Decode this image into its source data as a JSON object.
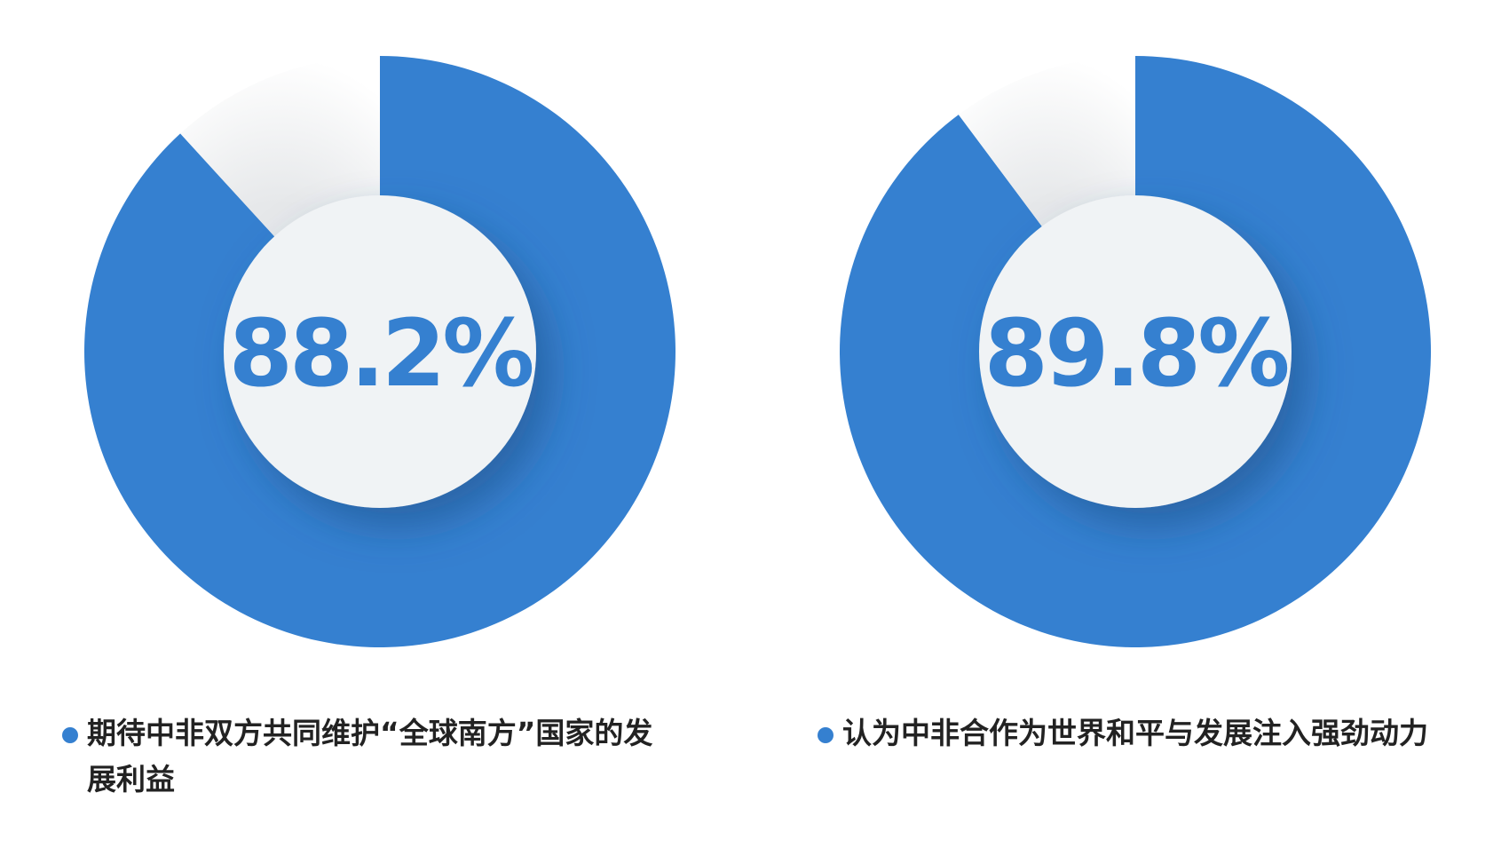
{
  "chart_data": [
    {
      "type": "pie",
      "style": "donut",
      "value_label": "88.2%",
      "values": [
        88.2,
        11.8
      ],
      "legend": "期待中非双方共同维护“全球南方”国家的发展利益",
      "legend_placement": "bottom"
    },
    {
      "type": "pie",
      "style": "donut",
      "value_label": "89.8%",
      "values": [
        89.8,
        10.2
      ],
      "legend": "认为中非合作为世界和平与发展注入强劲动力",
      "legend_placement": "bottom"
    }
  ],
  "colors": {
    "accent": "#3580d0",
    "remainder": "#ffffff",
    "center": "#f0f3f5"
  }
}
